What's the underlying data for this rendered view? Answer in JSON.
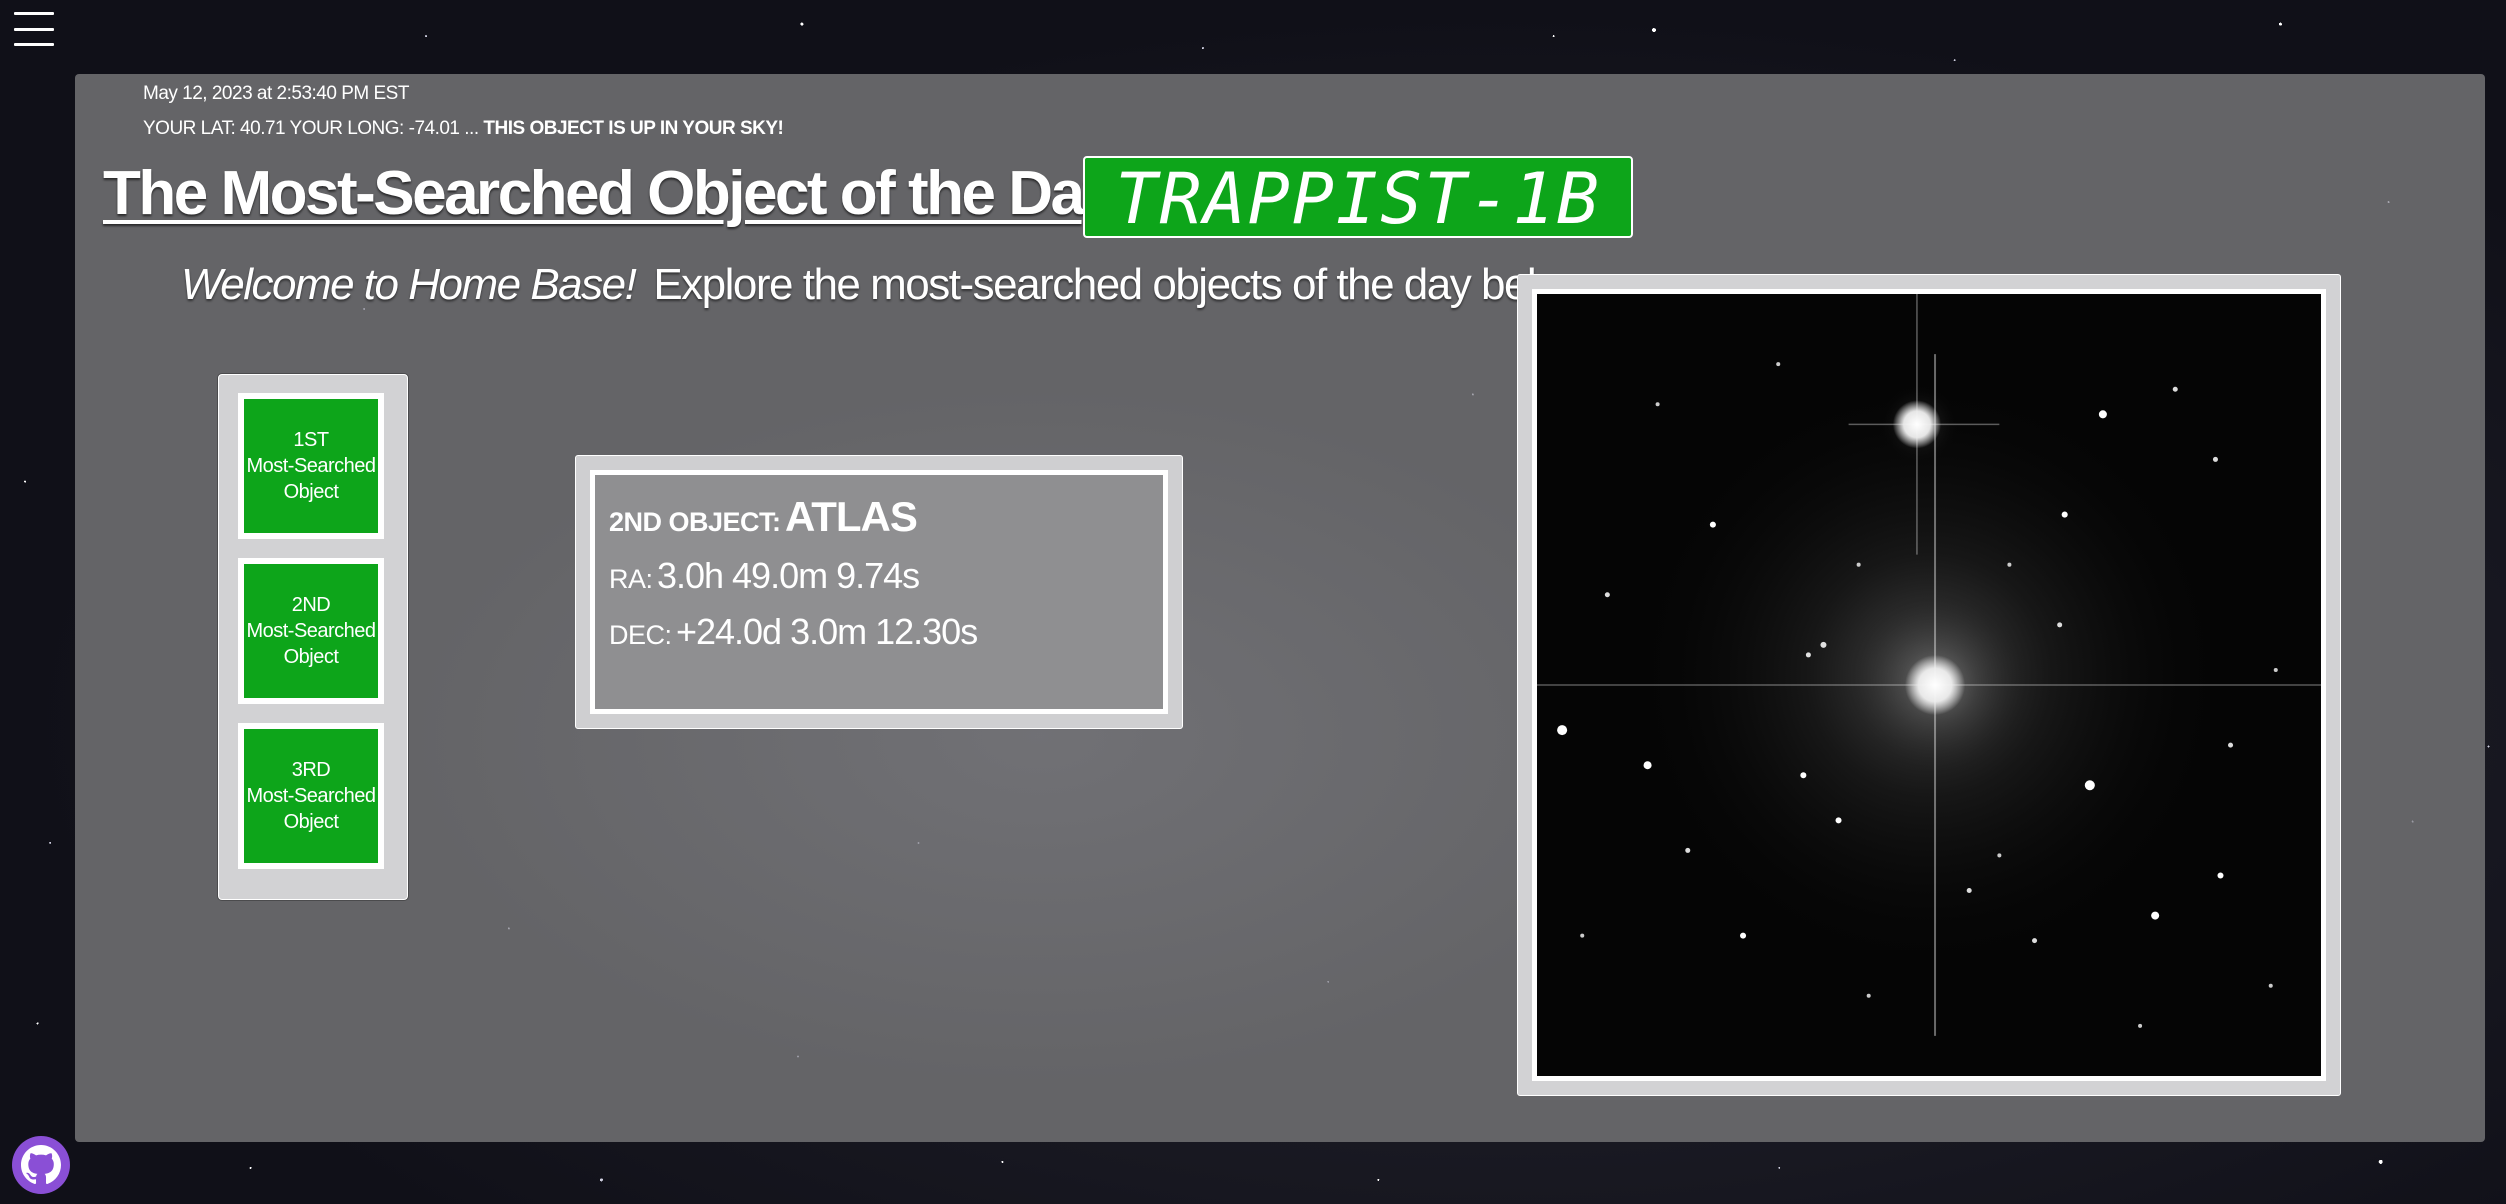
{
  "page": {
    "menu_icon": "hamburger-menu-icon",
    "github_icon": "github-icon",
    "accent_color": "#0da51a",
    "panel_color": "#646467"
  },
  "header": {
    "timestamp": "May 12, 2023 at 2:53:40 PM EST",
    "location_text": "YOUR LAT: 40.71 YOUR LONG: -74.01 ... ",
    "sky_status": "THIS OBJECT IS UP IN YOUR SKY!",
    "headline": "The Most-Searched Object of the Day is:",
    "featured_object": "TRAPPIST-1B"
  },
  "welcome": {
    "greeting": "Welcome to Home Base!",
    "tagline": "Explore the most-searched objects of the day below..."
  },
  "rank_buttons": [
    {
      "rank": "1ST",
      "line2": "Most-Searched",
      "line3": "Object"
    },
    {
      "rank": "2ND",
      "line2": "Most-Searched",
      "line3": "Object"
    },
    {
      "rank": "3RD",
      "line2": "Most-Searched",
      "line3": "Object"
    }
  ],
  "object_info": {
    "label": "2ND OBJECT:",
    "name": "ATLAS",
    "ra_label": "RA:",
    "ra_value": "3.0h 49.0m 9.74s",
    "dec_label": "DEC:",
    "dec_value": "+24.0d 3.0m 12.30s"
  },
  "image": {
    "description_icon": "star-field-image"
  }
}
